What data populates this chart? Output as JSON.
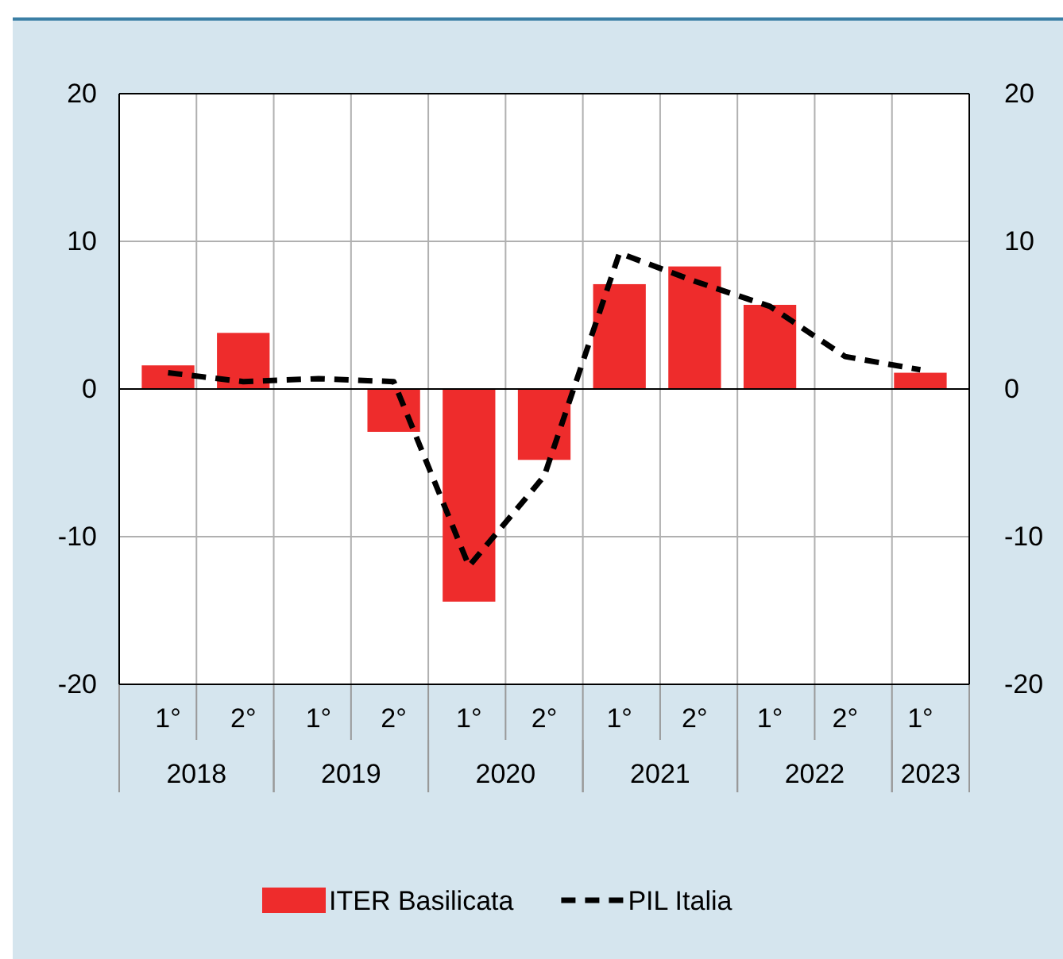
{
  "chart_data": {
    "type": "bar",
    "categories": [
      "1°",
      "2°",
      "1°",
      "2°",
      "1°",
      "2°",
      "1°",
      "2°",
      "1°",
      "2°",
      "1°"
    ],
    "series": [
      {
        "name": "ITER Basilicata",
        "color": "#ee2c2c",
        "values": [
          1.6,
          3.8,
          null,
          -2.9,
          -14.4,
          -4.8,
          7.1,
          8.3,
          5.7,
          null,
          1.1
        ]
      },
      {
        "name": "PIL Italia",
        "type": "line",
        "color": "#000000",
        "line_style": "dashed",
        "marker": "none",
        "values": [
          1.1,
          0.5,
          0.7,
          0.5,
          -12.0,
          -5.9,
          9.2,
          7.3,
          5.6,
          2.2,
          1.3
        ]
      }
    ],
    "annotations": [
      "2018",
      "2019",
      "2020",
      "2021",
      "2022",
      "2023"
    ],
    "ylim": [
      -20,
      20
    ],
    "yticks": [
      -20,
      -10,
      0,
      10,
      20
    ],
    "y2lim": [
      -20,
      20
    ],
    "y2ticks": [
      -20,
      -10,
      0,
      10,
      20
    ],
    "grid": true,
    "legend": "bottom"
  }
}
